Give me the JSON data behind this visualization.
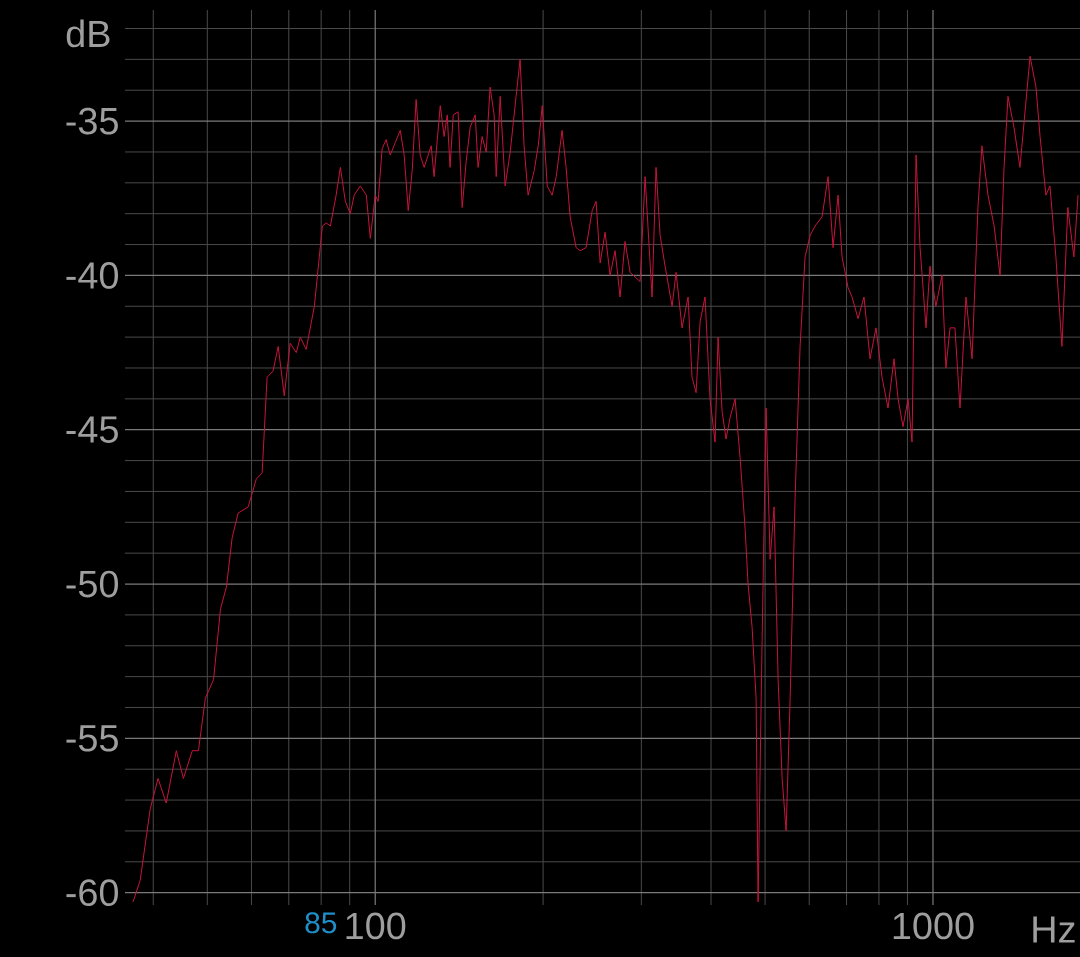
{
  "chart_data": {
    "type": "line",
    "xlabel": "Hz",
    "ylabel": "dB",
    "log": "x",
    "grid": true,
    "color": "#c8143c",
    "xlim": [
      35.6,
      1835
    ],
    "ylim": [
      -60.4,
      -31.4
    ],
    "xticks": [
      {
        "value": 40,
        "label": null
      },
      {
        "value": 50,
        "label": null
      },
      {
        "value": 60,
        "label": null
      },
      {
        "value": 70,
        "label": null
      },
      {
        "value": 80,
        "label": null
      },
      {
        "value": 90,
        "label": null
      },
      100,
      {
        "value": 200,
        "label": null
      },
      {
        "value": 300,
        "label": null
      },
      {
        "value": 400,
        "label": null
      },
      {
        "value": 500,
        "label": null
      },
      {
        "value": 600,
        "label": null
      },
      {
        "value": 700,
        "label": null
      },
      {
        "value": 800,
        "label": null
      },
      {
        "value": 900,
        "label": null
      },
      1000
    ],
    "yticks": [
      -60,
      {
        "value": -59,
        "label": null
      },
      {
        "value": -58,
        "label": null
      },
      {
        "value": -57,
        "label": null
      },
      {
        "value": -56,
        "label": null
      },
      -55,
      {
        "value": -54,
        "label": null
      },
      {
        "value": -53,
        "label": null
      },
      {
        "value": -52,
        "label": null
      },
      {
        "value": -51,
        "label": null
      },
      -50,
      {
        "value": -49,
        "label": null
      },
      {
        "value": -48,
        "label": null
      },
      {
        "value": -47,
        "label": null
      },
      {
        "value": -46,
        "label": null
      },
      -45,
      {
        "value": -44,
        "label": null
      },
      {
        "value": -43,
        "label": null
      },
      {
        "value": -42,
        "label": null
      },
      {
        "value": -41,
        "label": null
      },
      -40,
      {
        "value": -39,
        "label": null
      },
      {
        "value": -38,
        "label": null
      },
      {
        "value": -37,
        "label": null
      },
      {
        "value": -36,
        "label": null
      },
      -35,
      {
        "value": -34,
        "label": null
      },
      {
        "value": -33,
        "label": null
      },
      {
        "value": -32,
        "label": null
      }
    ],
    "annotations": [
      "85"
    ],
    "x": [
      36.8,
      37.9,
      39.5,
      40.8,
      42.2,
      44.0,
      45.3,
      47.0,
      48.2,
      49.6,
      51.3,
      52.8,
      54.1,
      55.4,
      56.8,
      59.2,
      61.2,
      62.7,
      64.0,
      65.6,
      67.0,
      68.7,
      70.4,
      72.2,
      73.4,
      75.2,
      77.8,
      80.4,
      81.7,
      83.1,
      85.1,
      86.6,
      88.4,
      90.2,
      91.7,
      94.0,
      96.4,
      98.0,
      100,
      101.2,
      102.9,
      104.6,
      106.4,
      108.6,
      110.9,
      112.7,
      114.6,
      116.5,
      118.4,
      120.4,
      122.4,
      126.0,
      127.5,
      130.8,
      132.9,
      134.6,
      136.2,
      138.0,
      140.8,
      143.2,
      145.6,
      148.0,
      151.1,
      152.9,
      155.5,
      158.1,
      160.7,
      163.4,
      164.8,
      167.5,
      171.0,
      174.6,
      178.9,
      181.9,
      184.9,
      188.0,
      192.8,
      196.0,
      199.3,
      203.4,
      207.6,
      211.1,
      216.3,
      219.9,
      223.6,
      229.2,
      233.0,
      238.8,
      244.9,
      248.9,
      253.1,
      258.3,
      263.7,
      269.2,
      274.8,
      280.5,
      286.4,
      298.5,
      304.7,
      313.6,
      318.8,
      324.2,
      330.9,
      340.6,
      346.3,
      354.9,
      363.9,
      369.9,
      376.1,
      382.4,
      390.3,
      398.4,
      406.7,
      411.8,
      418.7,
      425.6,
      432.8,
      441.8,
      451.0,
      460.4,
      466.1,
      473.9,
      481.8,
      485.8,
      493.9,
      502.1,
      510.5,
      519.0,
      527.7,
      536.5,
      545.4,
      554.5,
      566.0,
      577.8,
      589.8,
      602.4,
      614.7,
      632.7,
      648.5,
      662.1,
      675.9,
      687.1,
      704.4,
      716.0,
      734.0,
      752.3,
      771.2,
      790.5,
      810.3,
      830.6,
      851.4,
      865.7,
      883.7,
      902.2,
      917.2,
      932.5,
      948.1,
      971.6,
      987.7,
      1012,
      1038,
      1055,
      1073,
      1095,
      1118,
      1146,
      1175,
      1204,
      1224,
      1255,
      1287,
      1319,
      1341,
      1363,
      1397,
      1432,
      1493,
      1530,
      1556,
      1594,
      1621,
      1661,
      1703,
      1745,
      1789,
      1820
    ],
    "values": [
      -60.3,
      -59.6,
      -57.3,
      -56.3,
      -57.1,
      -55.4,
      -56.3,
      -55.4,
      -55.4,
      -53.7,
      -53.1,
      -50.8,
      -50.1,
      -48.5,
      -47.7,
      -47.5,
      -46.6,
      -46.4,
      -43.3,
      -43.1,
      -42.3,
      -43.9,
      -42.2,
      -42.5,
      -42.0,
      -42.4,
      -41.0,
      -38.4,
      -38.3,
      -38.4,
      -37.4,
      -36.5,
      -37.6,
      -38.0,
      -37.4,
      -37.1,
      -37.4,
      -38.8,
      -37.4,
      -37.6,
      -35.9,
      -35.6,
      -36.1,
      -35.7,
      -35.3,
      -36.1,
      -37.9,
      -36.6,
      -34.3,
      -36.1,
      -36.5,
      -35.8,
      -36.8,
      -34.5,
      -35.5,
      -34.8,
      -36.5,
      -34.8,
      -34.7,
      -37.8,
      -36.3,
      -35.2,
      -34.8,
      -36.5,
      -35.5,
      -36.0,
      -33.9,
      -34.8,
      -36.8,
      -34.2,
      -37.1,
      -36.0,
      -34.2,
      -33.0,
      -35.8,
      -37.4,
      -36.6,
      -35.8,
      -34.5,
      -37.1,
      -37.4,
      -36.8,
      -35.3,
      -36.5,
      -38.1,
      -39.1,
      -39.2,
      -39.1,
      -37.9,
      -37.6,
      -39.6,
      -38.6,
      -40.0,
      -39.2,
      -40.7,
      -38.9,
      -39.9,
      -40.2,
      -36.8,
      -40.7,
      -36.5,
      -38.7,
      -39.7,
      -41.0,
      -39.9,
      -41.7,
      -40.7,
      -43.3,
      -43.8,
      -41.5,
      -40.7,
      -44.0,
      -45.4,
      -42.0,
      -44.4,
      -45.3,
      -44.6,
      -44.0,
      -45.9,
      -48.2,
      -50.0,
      -51.4,
      -53.7,
      -60.3,
      -51.8,
      -44.3,
      -49.2,
      -47.5,
      -53.1,
      -56.3,
      -58.0,
      -53.7,
      -47.2,
      -42.3,
      -39.4,
      -38.7,
      -38.4,
      -38.1,
      -36.8,
      -39.1,
      -37.4,
      -39.4,
      -40.4,
      -40.7,
      -41.4,
      -40.7,
      -42.7,
      -41.7,
      -43.3,
      -44.3,
      -42.7,
      -44.0,
      -44.9,
      -44.0,
      -45.4,
      -36.1,
      -39.1,
      -41.7,
      -39.7,
      -41.0,
      -40.0,
      -43.0,
      -41.7,
      -41.7,
      -44.3,
      -40.7,
      -42.7,
      -37.8,
      -35.8,
      -37.4,
      -38.4,
      -40.0,
      -36.5,
      -34.2,
      -35.2,
      -36.5,
      -32.9,
      -33.9,
      -35.5,
      -37.4,
      -37.1,
      -39.4,
      -42.3,
      -37.8,
      -39.4,
      -37.4
    ]
  }
}
